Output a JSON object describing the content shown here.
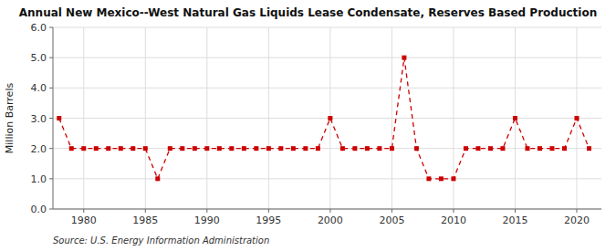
{
  "chart_data": {
    "type": "line",
    "title": "Annual New Mexico--West Natural Gas Liquids Lease Condensate, Reserves Based Production",
    "y_label": "Million Barrels",
    "source": "Source: U.S. Energy Information Administration",
    "x": [
      1978,
      1979,
      1980,
      1981,
      1982,
      1983,
      1984,
      1985,
      1986,
      1987,
      1988,
      1989,
      1990,
      1991,
      1992,
      1993,
      1994,
      1995,
      1996,
      1997,
      1998,
      1999,
      2000,
      2001,
      2002,
      2003,
      2004,
      2005,
      2006,
      2007,
      2008,
      2009,
      2010,
      2011,
      2012,
      2013,
      2014,
      2015,
      2016,
      2017,
      2018,
      2019,
      2020,
      2021
    ],
    "values": [
      3.0,
      2.0,
      2.0,
      2.0,
      2.0,
      2.0,
      2.0,
      2.0,
      1.0,
      2.0,
      2.0,
      2.0,
      2.0,
      2.0,
      2.0,
      2.0,
      2.0,
      2.0,
      2.0,
      2.0,
      2.0,
      2.0,
      3.0,
      2.0,
      2.0,
      2.0,
      2.0,
      2.0,
      5.0,
      2.0,
      1.0,
      1.0,
      1.0,
      2.0,
      2.0,
      2.0,
      2.0,
      3.0,
      2.0,
      2.0,
      2.0,
      2.0,
      3.0,
      2.0
    ],
    "color": "#cc0000",
    "marker": "square",
    "line_style": "dashed",
    "grid": true,
    "xlim": [
      1977.5,
      2022
    ],
    "xticks": [
      1980,
      1985,
      1990,
      1995,
      2000,
      2005,
      2010,
      2015,
      2020
    ],
    "ylim": [
      0.0,
      6.0
    ],
    "yticks": [
      {
        "value": 0.0,
        "label": "0.0"
      },
      {
        "value": 1.0,
        "label": "1.0"
      },
      {
        "value": 2.0,
        "label": "2.0"
      },
      {
        "value": 3.0,
        "label": "3.0"
      },
      {
        "value": 4.0,
        "label": "4.0"
      },
      {
        "value": 5.0,
        "label": "5.0"
      },
      {
        "value": 6.0,
        "label": "6.0"
      }
    ]
  }
}
